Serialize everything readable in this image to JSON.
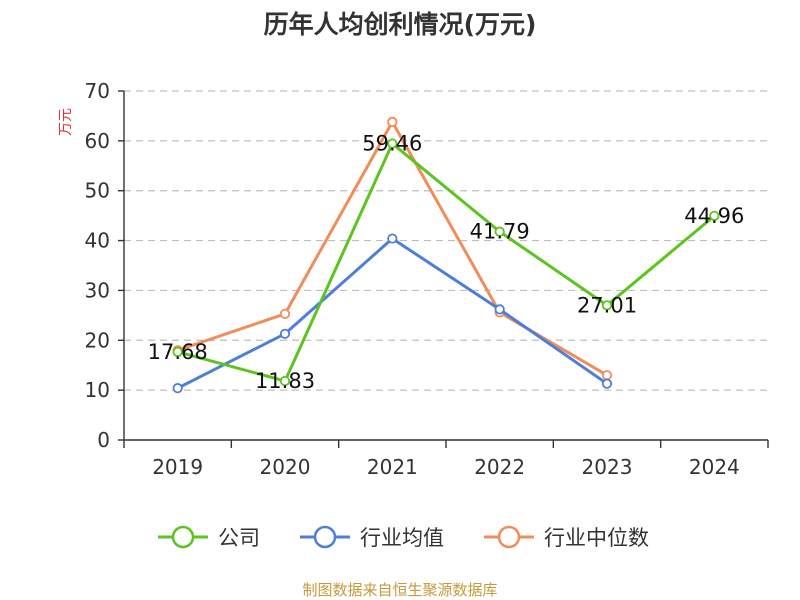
{
  "chart_data": {
    "type": "line",
    "title": "历年人均创利情况(万元)",
    "ylabel": "万元",
    "xlabel": "",
    "categories": [
      "2019",
      "2020",
      "2021",
      "2022",
      "2023",
      "2024"
    ],
    "ylim": [
      0,
      70
    ],
    "yticks": [
      0,
      10,
      20,
      30,
      40,
      50,
      60,
      70
    ],
    "grid": true,
    "legend_position": "bottom",
    "series": [
      {
        "name": "公司",
        "color": "#5cc41f",
        "values": [
          17.68,
          11.83,
          59.46,
          41.79,
          27.01,
          44.96
        ],
        "show_labels": true
      },
      {
        "name": "行业均值",
        "color": "#4e7fd8",
        "values": [
          10.4,
          21.3,
          40.4,
          26.2,
          11.3,
          null
        ],
        "show_labels": false
      },
      {
        "name": "行业中位数",
        "color": "#f28c5a",
        "values": [
          18.0,
          25.3,
          63.8,
          25.6,
          13.0,
          null
        ],
        "show_labels": false
      }
    ],
    "source": "制图数据来自恒生聚源数据库"
  }
}
